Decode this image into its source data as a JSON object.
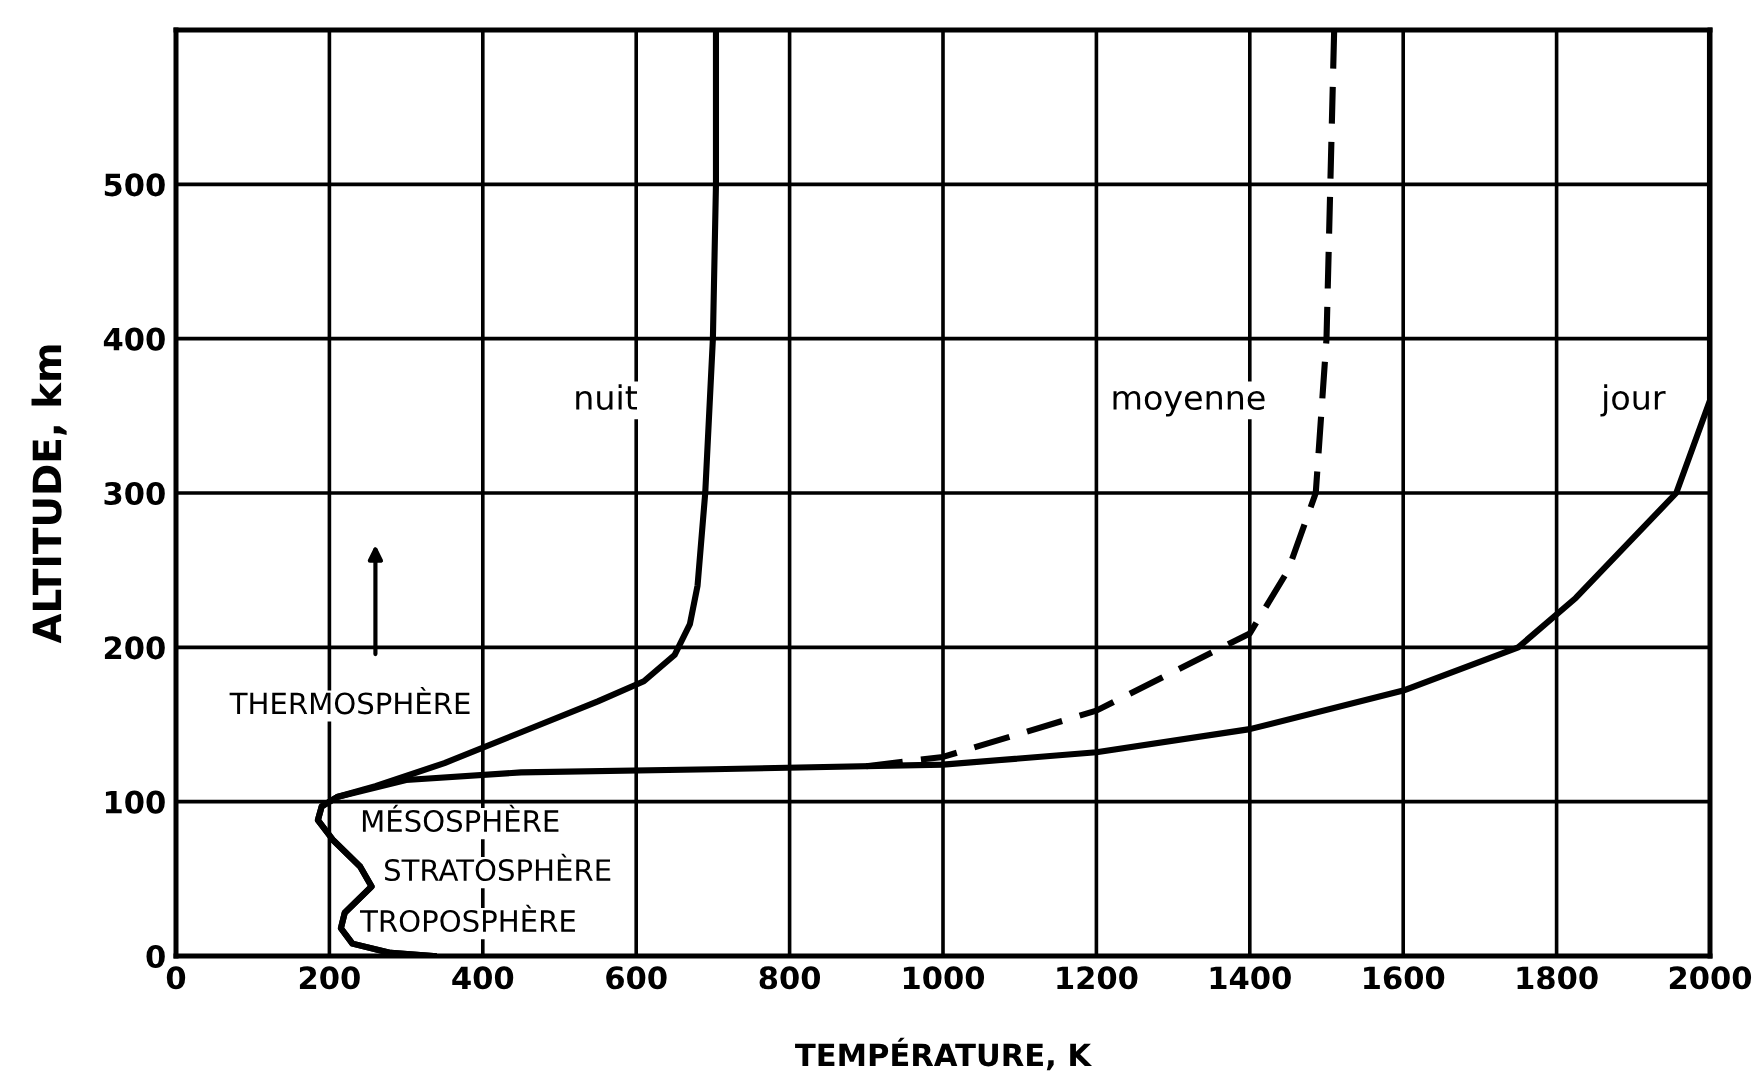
{
  "chart_data": {
    "type": "line",
    "xlabel": "TEMPÉRATURE, K",
    "ylabel": "ALTITUDE, km",
    "xlim": [
      0,
      2000
    ],
    "xticks": [
      0,
      200,
      400,
      600,
      800,
      1000,
      1200,
      1400,
      1600,
      1800,
      2000
    ],
    "ylim": [
      0,
      600
    ],
    "yticks": [
      0,
      100,
      200,
      300,
      400,
      500
    ],
    "grid": true,
    "legend": false,
    "marker": "none",
    "series": [
      {
        "name": "nuit",
        "color": "#000000",
        "line_style": "solid",
        "x": [
          336,
          280,
          230,
          215,
          220,
          255,
          240,
          205,
          185,
          190,
          210,
          260,
          350,
          450,
          550,
          610,
          650,
          670,
          680,
          690,
          700,
          704,
          704
        ],
        "values": [
          0,
          2,
          8,
          18,
          28,
          45,
          58,
          75,
          88,
          97,
          103,
          110,
          125,
          145,
          165,
          178,
          195,
          215,
          240,
          300,
          400,
          500,
          600
        ]
      },
      {
        "name": "moyenne",
        "color": "#000000",
        "line_style": "dashed",
        "x": [
          900,
          1000,
          1200,
          1400,
          1450,
          1486,
          1500,
          1505,
          1510
        ],
        "values": [
          123,
          129,
          159,
          209,
          250,
          300,
          400,
          500,
          600
        ]
      },
      {
        "name": "jour",
        "color": "#000000",
        "line_style": "solid",
        "x": [
          336,
          280,
          230,
          215,
          220,
          255,
          240,
          205,
          185,
          190,
          210,
          300,
          450,
          700,
          1000,
          1200,
          1400,
          1600,
          1750,
          1825,
          1956,
          2000,
          2000
        ],
        "values": [
          0,
          2,
          8,
          18,
          28,
          45,
          58,
          75,
          88,
          97,
          103,
          114,
          119,
          121,
          124,
          132,
          147,
          172,
          200,
          232,
          300,
          360,
          600
        ]
      }
    ],
    "annotations": [
      "THERMOSPHÈRE",
      "MÉSOSPHÈRE",
      "STRATOSPHÈRE",
      "TROPOSPHÈRE"
    ]
  }
}
